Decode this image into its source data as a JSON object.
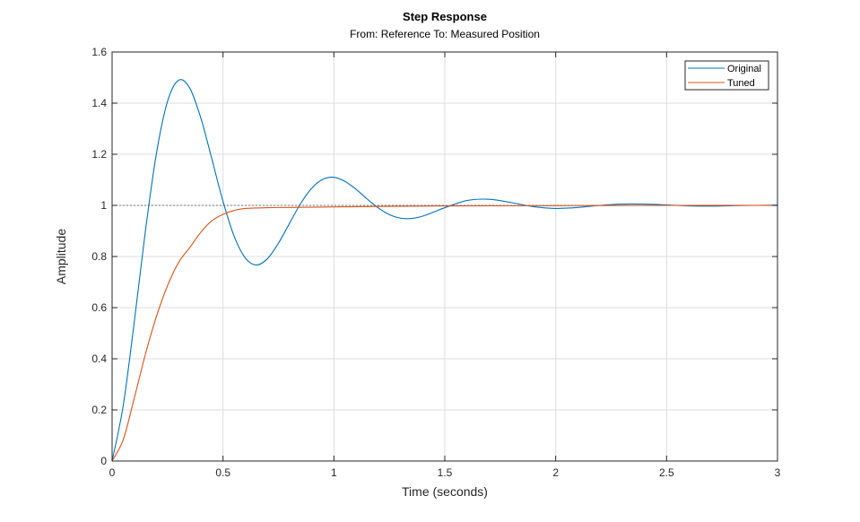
{
  "chart_data": {
    "type": "line",
    "title": "Step Response",
    "subtitle": "From: Reference  To: Measured Position",
    "xlabel": "Time (seconds)",
    "ylabel": "Amplitude",
    "xlim": [
      0,
      3
    ],
    "ylim": [
      0,
      1.6
    ],
    "xticks": [
      0,
      0.5,
      1,
      1.5,
      2,
      2.5,
      3
    ],
    "xtick_labels": [
      "0",
      "0.5",
      "1",
      "1.5",
      "2",
      "2.5",
      "3"
    ],
    "yticks": [
      0,
      0.2,
      0.4,
      0.6,
      0.8,
      1,
      1.2,
      1.4,
      1.6
    ],
    "ytick_labels": [
      "0",
      "0.2",
      "0.4",
      "0.6",
      "0.8",
      "1",
      "1.2",
      "1.4",
      "1.6"
    ],
    "grid": true,
    "legend_position": "top-right",
    "reference_line": {
      "y": 1,
      "style": "dotted",
      "color": "#555555"
    },
    "series": [
      {
        "name": "Original",
        "color": "#0072BD",
        "x": [
          0,
          0.05,
          0.1,
          0.15,
          0.2,
          0.25,
          0.3,
          0.35,
          0.4,
          0.45,
          0.5,
          0.55,
          0.6,
          0.65,
          0.7,
          0.75,
          0.8,
          0.85,
          0.9,
          0.95,
          1.0,
          1.05,
          1.1,
          1.15,
          1.2,
          1.25,
          1.3,
          1.35,
          1.4,
          1.45,
          1.5,
          1.6,
          1.7,
          1.8,
          1.9,
          2.0,
          2.1,
          2.2,
          2.3,
          2.4,
          2.5,
          2.6,
          2.7,
          2.8,
          2.9,
          3.0
        ],
        "y": [
          0,
          0.216,
          0.544,
          0.899,
          1.204,
          1.407,
          1.49,
          1.459,
          1.342,
          1.181,
          1.016,
          0.88,
          0.795,
          0.767,
          0.791,
          0.852,
          0.93,
          1.007,
          1.067,
          1.102,
          1.11,
          1.094,
          1.063,
          1.025,
          0.99,
          0.964,
          0.95,
          0.949,
          0.958,
          0.974,
          0.991,
          1.019,
          1.024,
          1.011,
          0.995,
          0.988,
          0.992,
          1.0,
          1.005,
          1.005,
          1.002,
          0.998,
          0.997,
          0.999,
          1.0,
          1.001
        ]
      },
      {
        "name": "Tuned",
        "color": "#D95319",
        "x": [
          0,
          0.05,
          0.1,
          0.15,
          0.2,
          0.25,
          0.3,
          0.35,
          0.4,
          0.45,
          0.5,
          0.55,
          0.6,
          0.7,
          0.8,
          1.0,
          1.2,
          1.5,
          2.0,
          2.5,
          3.0
        ],
        "y": [
          0,
          0.083,
          0.246,
          0.417,
          0.566,
          0.686,
          0.777,
          0.835,
          0.895,
          0.94,
          0.965,
          0.98,
          0.988,
          0.991,
          0.992,
          0.994,
          0.996,
          0.998,
          0.999,
          1.0,
          1.0
        ]
      }
    ]
  }
}
